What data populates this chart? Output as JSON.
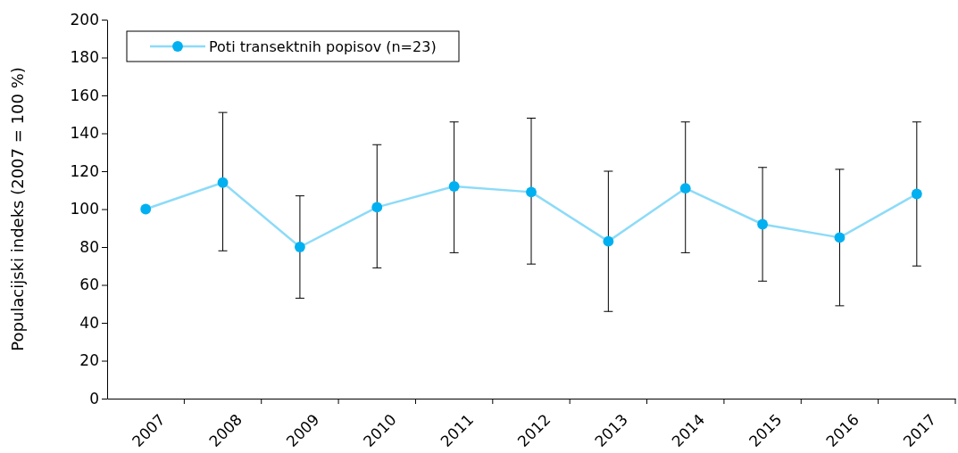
{
  "chart_data": {
    "type": "line",
    "ylabel": "Populacijski indeks (2007 = 100 %)",
    "categories": [
      "2007",
      "2008",
      "2009",
      "2010",
      "2011",
      "2012",
      "2013",
      "2014",
      "2015",
      "2016",
      "2017"
    ],
    "series": [
      {
        "name": "Poti transektnih popisov (n=23)",
        "color": "#00b0f0",
        "values": [
          100,
          114,
          80,
          101,
          112,
          109,
          83,
          111,
          92,
          85,
          108
        ],
        "errors": [
          null,
          [
            78,
            151
          ],
          [
            53,
            107
          ],
          [
            69,
            134
          ],
          [
            77,
            146
          ],
          [
            71,
            148
          ],
          [
            46,
            120
          ],
          [
            77,
            146
          ],
          [
            62,
            122
          ],
          [
            49,
            121
          ],
          [
            70,
            146
          ]
        ]
      }
    ],
    "ylim": [
      0,
      200
    ],
    "yticks": [
      0,
      20,
      40,
      60,
      80,
      100,
      120,
      140,
      160,
      180,
      200
    ],
    "marker": "circle",
    "legend": "top left",
    "grid": false
  }
}
